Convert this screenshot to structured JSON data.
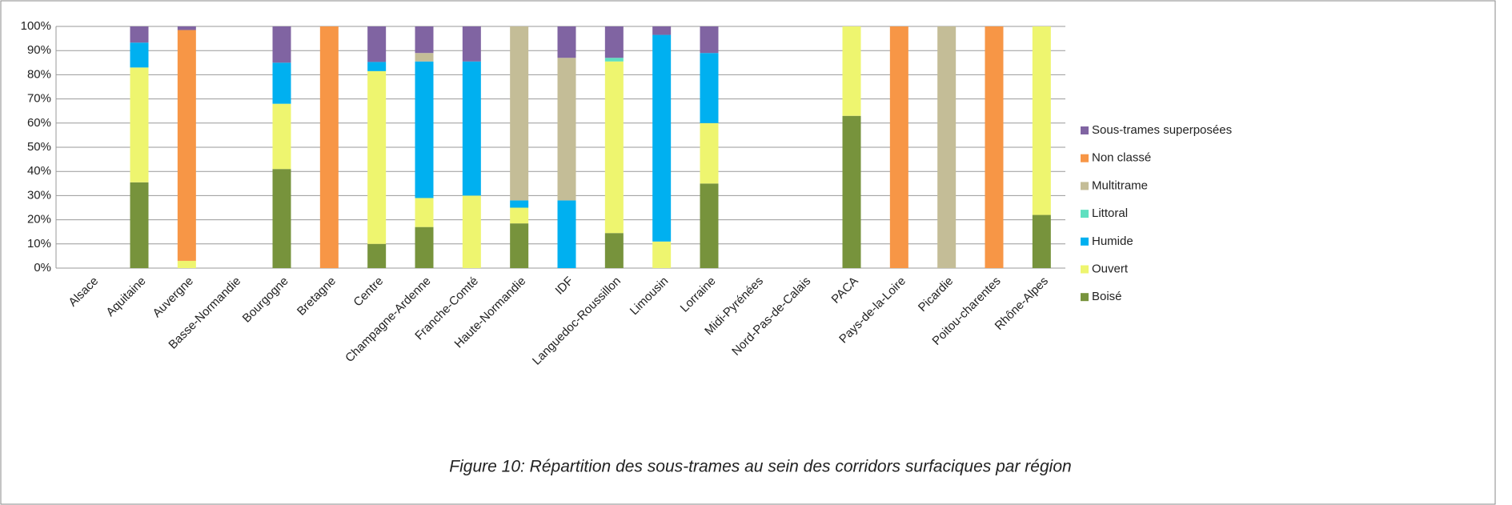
{
  "chart_data": {
    "type": "stacked-bar",
    "caption": "Figure 10: Répartition des sous-trames au sein des corridors surfaciques par région",
    "categories": [
      "Alsace",
      "Aquitaine",
      "Auvergne",
      "Basse-Normandie",
      "Bourgogne",
      "Bretagne",
      "Centre",
      "Champagne-Ardenne",
      "Franche-Comté",
      "Haute-Normandie",
      "IDF",
      "Languedoc-Roussillon",
      "Limousin",
      "Lorraine",
      "Midi-Pyrénées",
      "Nord-Pas-de-Calais",
      "PACA",
      "Pays-de-la-Loire",
      "Picardie",
      "Poitou-charentes",
      "Rhône-Alpes"
    ],
    "series": [
      {
        "name": "Boisé",
        "color": "#77933c",
        "values": [
          0,
          35.5,
          0,
          0,
          41,
          0,
          10,
          17,
          0,
          18.5,
          0,
          14.5,
          0,
          35,
          0,
          0,
          63,
          0,
          0,
          0,
          22
        ]
      },
      {
        "name": "Ouvert",
        "color": "#eef56f",
        "values": [
          0,
          47.5,
          3,
          0,
          27,
          0,
          71.5,
          12,
          30,
          6.5,
          0,
          71,
          11,
          25,
          0,
          0,
          37,
          0,
          0,
          0,
          78
        ]
      },
      {
        "name": "Humide",
        "color": "#00b0f0",
        "values": [
          0,
          10.3,
          0,
          0,
          17,
          0,
          3.8,
          56.5,
          55.5,
          3,
          28,
          0,
          85.5,
          29,
          0,
          0,
          0,
          0,
          0,
          0,
          0
        ]
      },
      {
        "name": "Littoral",
        "color": "#5fe0c0",
        "values": [
          0,
          0,
          0,
          0,
          0,
          0,
          0,
          0,
          0,
          0,
          0,
          1.5,
          0,
          0,
          0,
          0,
          0,
          0,
          0,
          0,
          0
        ]
      },
      {
        "name": "Multitrame",
        "color": "#c4bd97",
        "values": [
          0,
          0,
          0,
          0,
          0,
          0,
          0,
          3.5,
          0,
          72,
          59,
          0,
          0,
          0,
          0,
          0,
          0,
          0,
          100,
          0,
          0
        ]
      },
      {
        "name": "Non classé",
        "color": "#f79646",
        "values": [
          0,
          0,
          95.5,
          0,
          0,
          100,
          0,
          0,
          0,
          0,
          0,
          0,
          0,
          0,
          0,
          0,
          0,
          100,
          0,
          100,
          0
        ]
      },
      {
        "name": "Sous-trames superposées",
        "color": "#8064a2",
        "values": [
          0,
          6.7,
          1.5,
          0,
          15,
          0,
          14.7,
          11,
          14.5,
          0,
          13,
          13,
          3.5,
          11,
          0,
          0,
          0,
          0,
          0,
          0,
          0
        ]
      }
    ],
    "ylim": [
      0,
      100
    ],
    "yticks": [
      {
        "value": 0,
        "label": "0%"
      },
      {
        "value": 10,
        "label": "10%"
      },
      {
        "value": 20,
        "label": "20%"
      },
      {
        "value": 30,
        "label": "30%"
      },
      {
        "value": 40,
        "label": "40%"
      },
      {
        "value": 50,
        "label": "50%"
      },
      {
        "value": 60,
        "label": "60%"
      },
      {
        "value": 70,
        "label": "70%"
      },
      {
        "value": 80,
        "label": "80%"
      },
      {
        "value": 90,
        "label": "90%"
      },
      {
        "value": 100,
        "label": "100%"
      }
    ],
    "grid": true,
    "legend": "right"
  }
}
